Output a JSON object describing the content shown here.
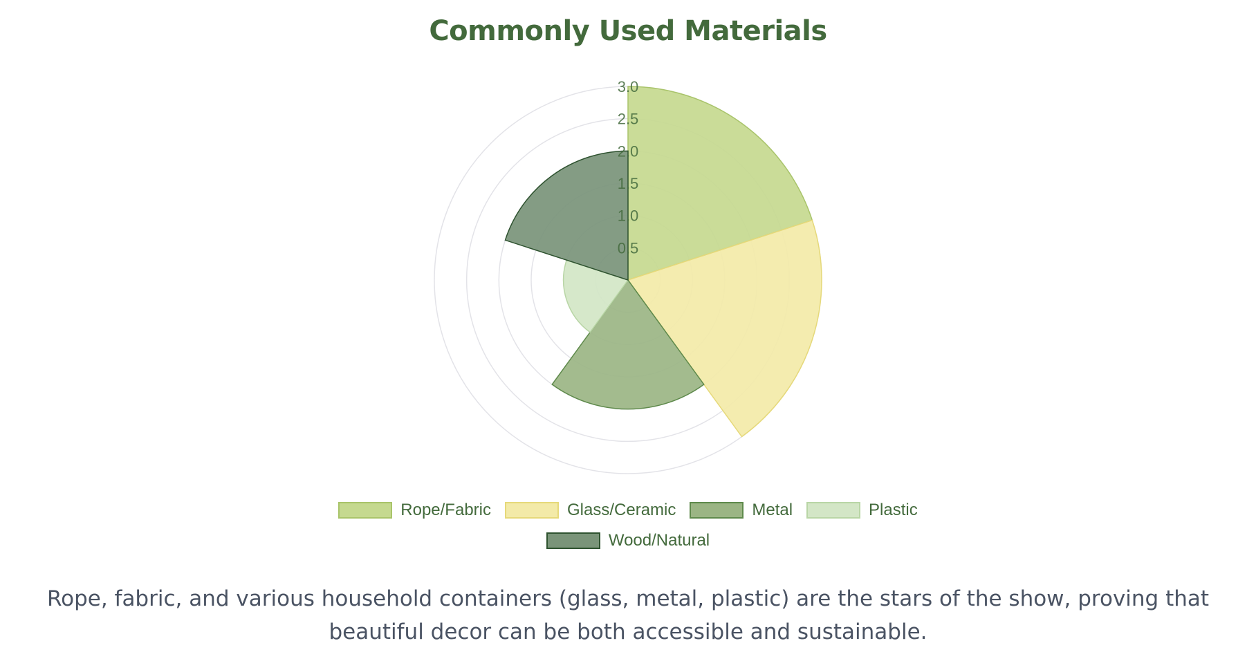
{
  "title": "Commonly Used Materials",
  "caption": "Rope, fabric, and various household containers (glass, metal, plastic) are the stars of the show, proving that beautiful decor can be both accessible and sustainable.",
  "chart_data": {
    "type": "polarArea",
    "title": "Commonly Used Materials",
    "categories": [
      "Rope/Fabric",
      "Glass/Ceramic",
      "Metal",
      "Plastic",
      "Wood/Natural"
    ],
    "values": [
      3,
      3,
      2,
      1,
      2
    ],
    "rlim": [
      0,
      3
    ],
    "rticks": [
      "0.5",
      "1.0",
      "1.5",
      "2.0",
      "2.5",
      "3.0"
    ],
    "legend_position": "bottom",
    "grid": true,
    "colors": [
      {
        "fill": "#c5d98f",
        "stroke": "#a9c46a"
      },
      {
        "fill": "#f3eaa8",
        "stroke": "#e6d97a"
      },
      {
        "fill": "#9bb584",
        "stroke": "#5f8a4c"
      },
      {
        "fill": "#d3e6c6",
        "stroke": "#b9d6a6"
      },
      {
        "fill": "#7a9479",
        "stroke": "#2f5330"
      }
    ]
  }
}
